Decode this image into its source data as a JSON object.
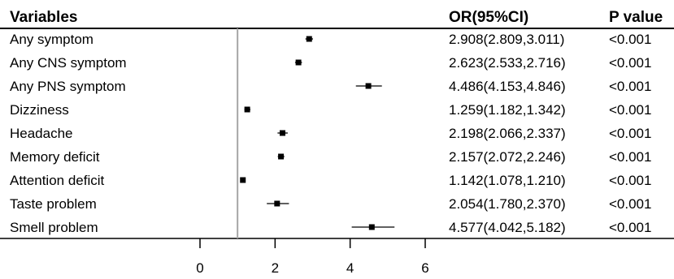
{
  "chart_data": {
    "type": "forest",
    "headers": {
      "variable": "Variables",
      "estimate": "OR(95%CI)",
      "pvalue": "P value"
    },
    "rows": [
      {
        "label": "Any symptom",
        "or": 2.908,
        "lo": 2.809,
        "hi": 3.011,
        "ci_text": "2.908(2.809,3.011)",
        "p": "<0.001"
      },
      {
        "label": "Any CNS symptom",
        "or": 2.623,
        "lo": 2.533,
        "hi": 2.716,
        "ci_text": "2.623(2.533,2.716)",
        "p": "<0.001"
      },
      {
        "label": "Any PNS symptom",
        "or": 4.486,
        "lo": 4.153,
        "hi": 4.846,
        "ci_text": "4.486(4.153,4.846)",
        "p": "<0.001"
      },
      {
        "label": "Dizziness",
        "or": 1.259,
        "lo": 1.182,
        "hi": 1.342,
        "ci_text": "1.259(1.182,1.342)",
        "p": "<0.001"
      },
      {
        "label": "Headache",
        "or": 2.198,
        "lo": 2.066,
        "hi": 2.337,
        "ci_text": "2.198(2.066,2.337)",
        "p": "<0.001"
      },
      {
        "label": "Memory deficit",
        "or": 2.157,
        "lo": 2.072,
        "hi": 2.246,
        "ci_text": "2.157(2.072,2.246)",
        "p": "<0.001"
      },
      {
        "label": "Attention deficit",
        "or": 1.142,
        "lo": 1.078,
        "hi": 1.21,
        "ci_text": "1.142(1.078,1.210)",
        "p": "<0.001"
      },
      {
        "label": "Taste problem",
        "or": 2.054,
        "lo": 1.78,
        "hi": 2.37,
        "ci_text": "2.054(1.780,2.370)",
        "p": "<0.001"
      },
      {
        "label": "Smell problem",
        "or": 4.577,
        "lo": 4.042,
        "hi": 5.182,
        "ci_text": "4.577(4.042,5.182)",
        "p": "<0.001"
      }
    ],
    "xticks": [
      0,
      2,
      4,
      6
    ],
    "xlim": [
      0,
      6
    ],
    "reference_line": 1,
    "grid": false
  }
}
